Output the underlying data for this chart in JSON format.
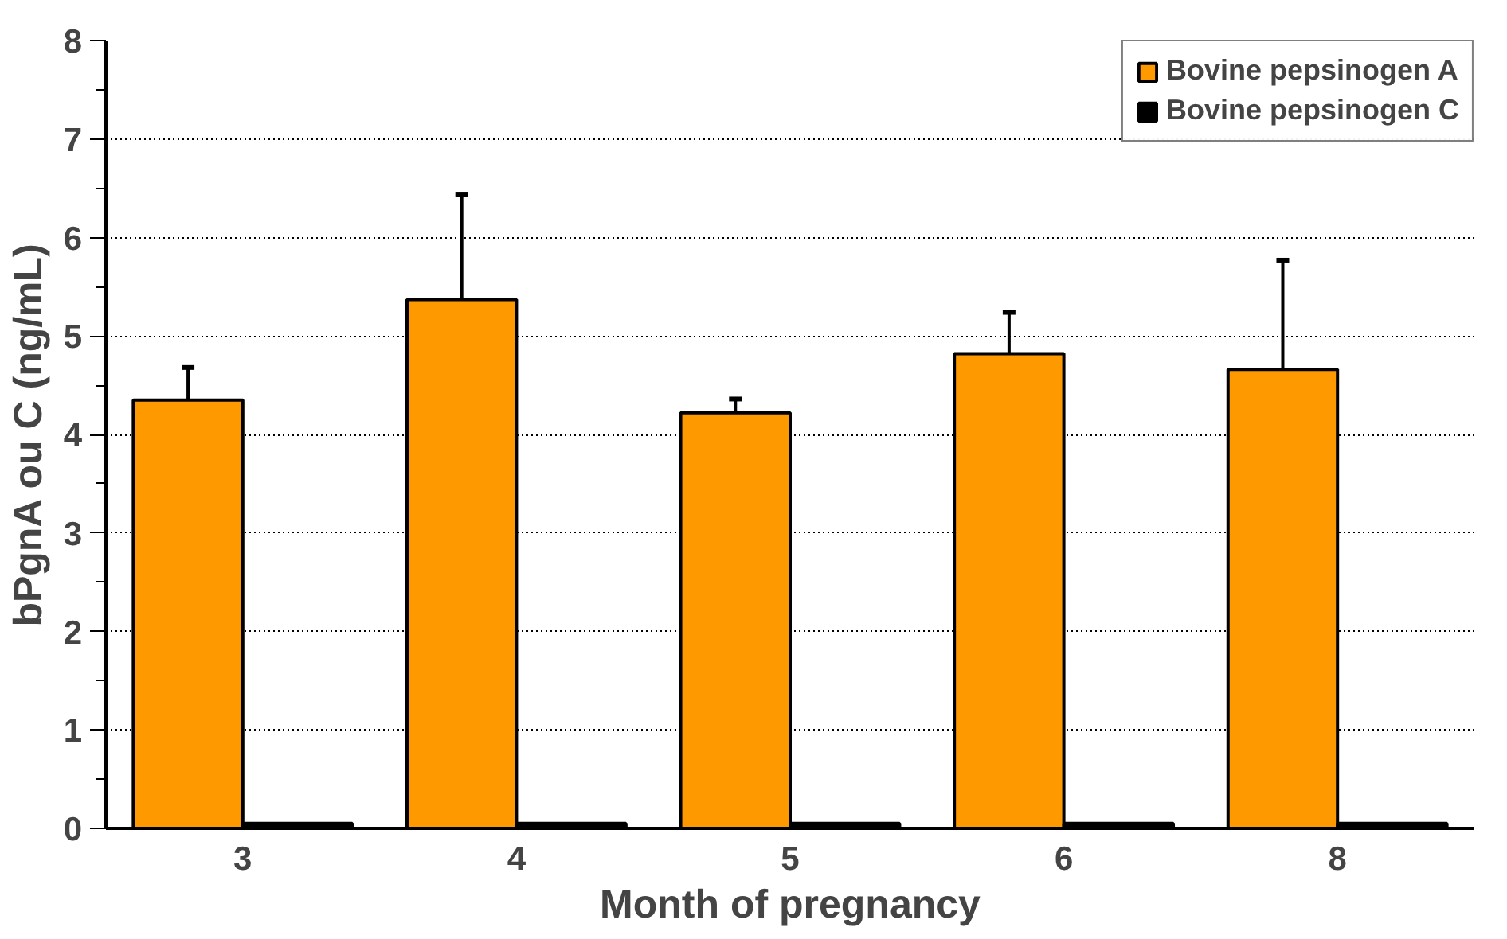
{
  "chart_data": {
    "type": "bar",
    "xlabel": "Month of pregnancy",
    "ylabel": "bPgnA ou C (ng/mL)",
    "categories": [
      "3",
      "4",
      "5",
      "6",
      "8"
    ],
    "series": [
      {
        "name": "Bovine pepsinogen A",
        "color": "#ff9900",
        "values": [
          4.35,
          5.37,
          4.22,
          4.82,
          4.66
        ],
        "errors": [
          0.33,
          1.07,
          0.14,
          0.42,
          1.11
        ]
      },
      {
        "name": "Bovine pepsinogen C",
        "color": "#000000",
        "values": [
          0.05,
          0.05,
          0.05,
          0.05,
          0.05
        ]
      }
    ],
    "ylim": [
      0,
      8
    ],
    "yticks": [
      0,
      {
        "value": 0.5,
        "label": null
      },
      1,
      {
        "value": 1.5,
        "label": null
      },
      2,
      {
        "value": 2.5,
        "label": null
      },
      3,
      {
        "value": 3.5,
        "label": null
      },
      4,
      {
        "value": 4.5,
        "label": null
      },
      5,
      {
        "value": 5.5,
        "label": null
      },
      6,
      {
        "value": 6.5,
        "label": null
      },
      7,
      {
        "value": 7.5,
        "label": null
      },
      8
    ],
    "grid": "y",
    "legend": "top right"
  }
}
